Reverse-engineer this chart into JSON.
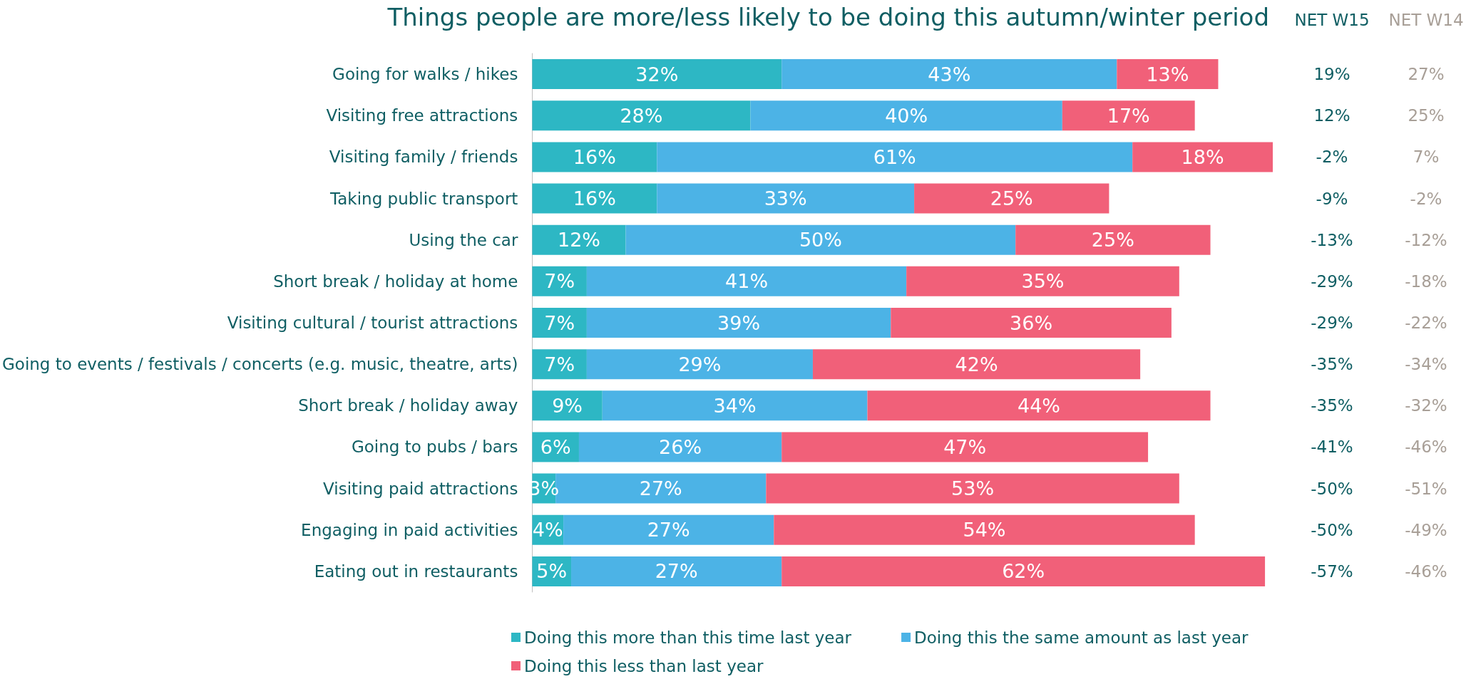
{
  "chart_data": {
    "type": "bar",
    "orientation": "horizontal",
    "stacked": true,
    "title": "Things people are more/less likely to be doing this autumn/winter period",
    "categories": [
      "Going for walks / hikes",
      "Visiting free attractions",
      "Visiting family / friends",
      "Taking public transport",
      "Using the car",
      "Short break / holiday at home",
      "Visiting cultural / tourist attractions",
      "Going to events / festivals / concerts (e.g. music, theatre, arts)",
      "Short break / holiday away",
      "Going to pubs / bars",
      "Visiting paid attractions",
      "Engaging in paid activities",
      "Eating out in restaurants"
    ],
    "series": [
      {
        "name": "Doing this more than this time last year",
        "color": "#2db7c4",
        "values": [
          32,
          28,
          16,
          16,
          12,
          7,
          7,
          7,
          9,
          6,
          3,
          4,
          5
        ],
        "value_labels": [
          "32%",
          "28%",
          "16%",
          "16%",
          "12%",
          "7%",
          "7%",
          "7%",
          "9%",
          "6%",
          "3%",
          "4%",
          "5%"
        ]
      },
      {
        "name": "Doing this the same amount as last year",
        "color": "#4cb3e6",
        "values": [
          43,
          40,
          61,
          33,
          50,
          41,
          39,
          29,
          34,
          26,
          27,
          27,
          27
        ],
        "value_labels": [
          "43%",
          "40%",
          "61%",
          "33%",
          "50%",
          "41%",
          "39%",
          "29%",
          "34%",
          "26%",
          "27%",
          "27%",
          "27%"
        ]
      },
      {
        "name": "Doing this less than last year",
        "color": "#f16079",
        "values": [
          13,
          17,
          18,
          25,
          25,
          35,
          36,
          42,
          44,
          47,
          53,
          54,
          62
        ],
        "value_labels": [
          "13%",
          "17%",
          "18%",
          "25%",
          "25%",
          "35%",
          "36%",
          "42%",
          "44%",
          "47%",
          "53%",
          "54%",
          "62%"
        ]
      }
    ],
    "legend": "bottom",
    "annotations": [
      "NET W15",
      "19%",
      "12%",
      "-2%",
      "-9%",
      "-13%",
      "-29%",
      "-29%",
      "-35%",
      "-35%",
      "-41%",
      "-50%",
      "-50%",
      "-57%",
      "NET W14",
      "27%",
      "25%",
      "7%",
      "-2%",
      "-12%",
      "-18%",
      "-22%",
      "-34%",
      "-32%",
      "-46%",
      "-51%",
      "-49%",
      "-46%"
    ]
  }
}
